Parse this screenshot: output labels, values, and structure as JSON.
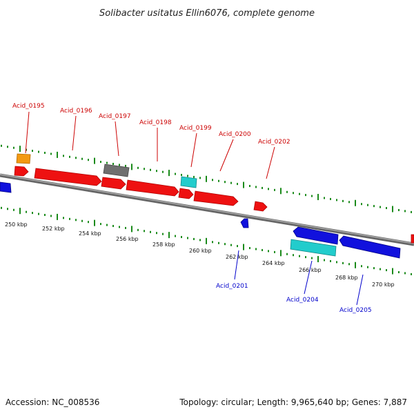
{
  "title": "Solibacter usitatus Ellin6076, complete genome",
  "footer": {
    "accession": "Accession: NC_008536",
    "topology": "Topology: circular; Length: 9,965,640 bp; Genes: 7,887"
  },
  "colors": {
    "forward_gene": "#ee1111",
    "reverse_gene": "#1111dd",
    "orange_gene": "#f39a12",
    "gray_gene": "#6f6f6f",
    "cyan_gene": "#22cccc",
    "backbone": "#7a7a7a",
    "tick": "#1a8a1a",
    "label_forward": "#cc0000",
    "label_reverse": "#0000cc"
  },
  "scale_labels": [
    "250 kbp",
    "252 kbp",
    "254 kbp",
    "256 kbp",
    "258 kbp",
    "260 kbp",
    "262 kbp",
    "264 kbp",
    "266 kbp",
    "268 kbp",
    "270 kbp"
  ],
  "forward_labels": [
    "Acid_0195",
    "Acid_0196",
    "Acid_0197",
    "Acid_0198",
    "Acid_0199",
    "Acid_0200",
    "Acid_0202"
  ],
  "reverse_labels": [
    "Acid_0201",
    "Acid_0204",
    "Acid_0205"
  ]
}
